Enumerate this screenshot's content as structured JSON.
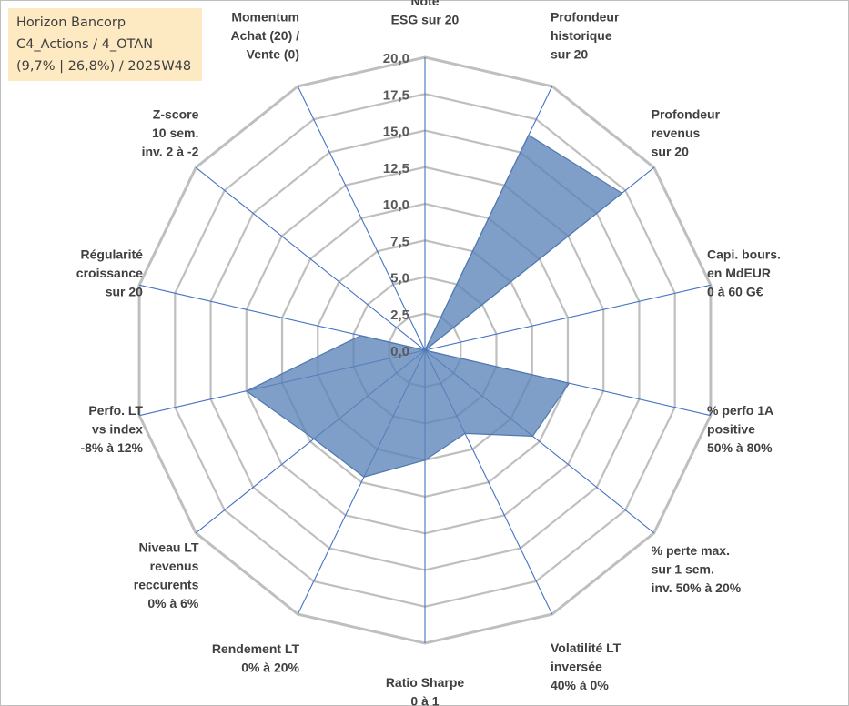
{
  "info_box": {
    "line1": "Horizon Bancorp",
    "line2": "C4_Actions / 4_OTAN",
    "line3": "(9,7% | 26,8%) / 2025W48"
  },
  "colors": {
    "fill": "#5b84b9",
    "stroke": "#4f79b0",
    "spoke": "#4472c4",
    "ring": "#bfbfbf",
    "info_bg": "#fde9c2"
  },
  "chart_data": {
    "type": "radar",
    "title": "",
    "rmin": 0,
    "rmax": 20,
    "step": 2.5,
    "ticks": [
      "0,0",
      "2,5",
      "5,0",
      "7,5",
      "10,0",
      "12,5",
      "15,0",
      "17,5",
      "20,0"
    ],
    "axes": [
      [
        "Note",
        "ESG sur 20"
      ],
      [
        "Profondeur",
        "historique",
        "sur 20"
      ],
      [
        "Profondeur",
        "revenus",
        "sur 20"
      ],
      [
        "Capi. bours.",
        "en MdEUR",
        "0 à 60 G€"
      ],
      [
        "% perfo 1A",
        "positive",
        "50% à 80%"
      ],
      [
        "% perte max.",
        "sur 1 sem.",
        "inv. 50% à 20%"
      ],
      [
        "Volatilité LT",
        "inversée",
        "40% à 0%"
      ],
      [
        "Ratio Sharpe",
        "0 à 1"
      ],
      [
        "Rendement LT",
        "0% à 20%"
      ],
      [
        "Niveau LT",
        "revenus",
        "reccurents",
        "0% à 6%"
      ],
      [
        "Perfo. LT",
        "vs index",
        "-8% à 12%"
      ],
      [
        "Régularité",
        "croissance",
        "sur 20"
      ],
      [
        "Z-score",
        "10 sem.",
        "inv. 2 à -2"
      ],
      [
        "Momentum",
        "Achat (20) /",
        "Vente (0)"
      ]
    ],
    "values": [
      0,
      16.3,
      17.2,
      0,
      10.1,
      9.4,
      6.3,
      7.5,
      9.6,
      9.7,
      12.5,
      4.5,
      0,
      0
    ],
    "grid": true,
    "legend": "none"
  }
}
